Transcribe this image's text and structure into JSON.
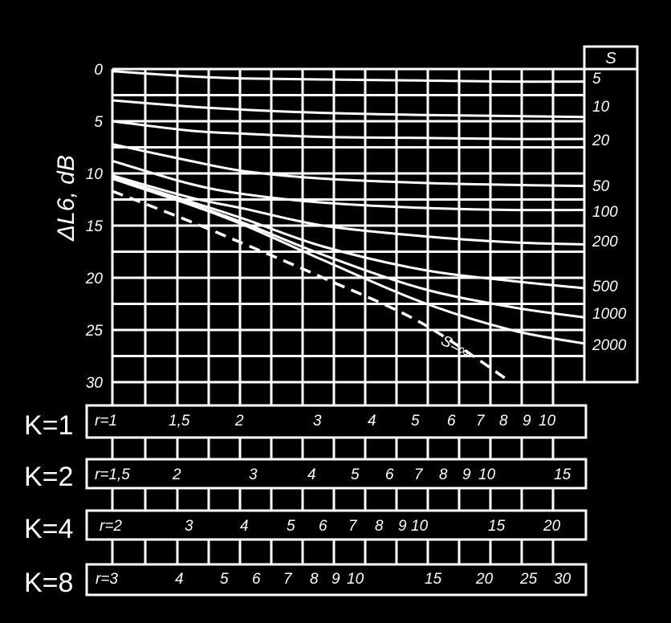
{
  "chart_data": {
    "type": "line",
    "ylabel": "ΔL6, dB",
    "y_axis": {
      "ticks": [
        "0",
        "5",
        "10",
        "15",
        "20",
        "25",
        "30"
      ],
      "ylim": [
        0,
        30
      ],
      "inverted": true
    },
    "grid": true,
    "legend": {
      "title": "S",
      "placement": "right",
      "entries": [
        "5",
        "10",
        "20",
        "50",
        "100",
        "200",
        "500",
        "1000",
        "2000"
      ]
    },
    "x_scale": "log",
    "x_reference": "K=1 r",
    "series": [
      {
        "s": "5",
        "style": "solid",
        "x": [
          1,
          1.5,
          2,
          3,
          5,
          8,
          12
        ],
        "y": [
          0.2,
          0.7,
          0.9,
          1.0,
          1.1,
          1.2,
          1.2
        ]
      },
      {
        "s": "10",
        "style": "solid",
        "x": [
          1,
          1.5,
          2,
          3,
          5,
          8,
          12
        ],
        "y": [
          3.0,
          3.6,
          3.9,
          4.2,
          4.4,
          4.5,
          4.6
        ]
      },
      {
        "s": "20",
        "style": "solid",
        "x": [
          1,
          1.5,
          2,
          3,
          5,
          8,
          12
        ],
        "y": [
          5.0,
          5.9,
          6.2,
          6.5,
          6.6,
          6.7,
          6.7
        ]
      },
      {
        "s": "50",
        "style": "solid",
        "x": [
          1,
          1.5,
          2,
          3,
          5,
          8,
          12
        ],
        "y": [
          7.2,
          8.8,
          9.8,
          10.5,
          10.9,
          11.1,
          11.2
        ]
      },
      {
        "s": "100",
        "style": "solid",
        "x": [
          1,
          1.5,
          2,
          3,
          5,
          8,
          12
        ],
        "y": [
          8.8,
          11.0,
          12.0,
          12.8,
          13.3,
          13.5,
          13.5
        ]
      },
      {
        "s": "200",
        "style": "solid",
        "x": [
          1,
          1.5,
          2,
          3,
          5,
          8,
          12
        ],
        "y": [
          10.2,
          12.3,
          13.4,
          15.0,
          16.0,
          16.6,
          16.8
        ]
      },
      {
        "s": "500",
        "style": "solid",
        "x": [
          1,
          1.5,
          2,
          3,
          5,
          8,
          12
        ],
        "y": [
          10.4,
          12.7,
          14.4,
          17.0,
          19.2,
          20.3,
          21.0
        ]
      },
      {
        "s": "1000",
        "style": "solid",
        "x": [
          1,
          1.5,
          2,
          3,
          5,
          8,
          12
        ],
        "y": [
          10.5,
          12.9,
          14.8,
          17.8,
          21.0,
          22.8,
          23.8
        ]
      },
      {
        "s": "2000",
        "style": "solid",
        "x": [
          1,
          1.5,
          2,
          3,
          5,
          8,
          12
        ],
        "y": [
          10.5,
          13.0,
          15.0,
          18.3,
          22.3,
          25.0,
          26.3
        ]
      },
      {
        "s": "S=∞",
        "style": "dashed",
        "x": [
          1,
          1.5,
          2,
          3,
          5,
          8
        ],
        "y": [
          11.7,
          14.6,
          16.8,
          20.0,
          24.3,
          30.0
        ]
      }
    ],
    "annotations": [
      "S=∞"
    ],
    "scales": [
      {
        "k": "K=1",
        "ticks": [
          {
            "label": "r=1",
            "value": 1
          },
          {
            "label": "1,5",
            "value": 1.5
          },
          {
            "label": "2",
            "value": 2
          },
          {
            "label": "3",
            "value": 3
          },
          {
            "label": "4",
            "value": 4
          },
          {
            "label": "5",
            "value": 5
          },
          {
            "label": "6",
            "value": 6
          },
          {
            "label": "7",
            "value": 7
          },
          {
            "label": "8",
            "value": 8
          },
          {
            "label": "9",
            "value": 9
          },
          {
            "label": "10",
            "value": 10
          }
        ]
      },
      {
        "k": "K=2",
        "ticks": [
          {
            "label": "r=1,5",
            "value": 1.5
          },
          {
            "label": "2",
            "value": 2
          },
          {
            "label": "3",
            "value": 3
          },
          {
            "label": "4",
            "value": 4
          },
          {
            "label": "5",
            "value": 5
          },
          {
            "label": "6",
            "value": 6
          },
          {
            "label": "7",
            "value": 7
          },
          {
            "label": "8",
            "value": 8
          },
          {
            "label": "9",
            "value": 9
          },
          {
            "label": "10",
            "value": 10
          },
          {
            "label": "15",
            "value": 15
          }
        ]
      },
      {
        "k": "K=4",
        "ticks": [
          {
            "label": "r=2",
            "value": 2
          },
          {
            "label": "3",
            "value": 3
          },
          {
            "label": "4",
            "value": 4
          },
          {
            "label": "5",
            "value": 5
          },
          {
            "label": "6",
            "value": 6
          },
          {
            "label": "7",
            "value": 7
          },
          {
            "label": "8",
            "value": 8
          },
          {
            "label": "9",
            "value": 9
          },
          {
            "label": "10",
            "value": 10
          },
          {
            "label": "15",
            "value": 15
          },
          {
            "label": "20",
            "value": 20
          }
        ]
      },
      {
        "k": "K=8",
        "ticks": [
          {
            "label": "r=3",
            "value": 3
          },
          {
            "label": "4",
            "value": 4
          },
          {
            "label": "5",
            "value": 5
          },
          {
            "label": "6",
            "value": 6
          },
          {
            "label": "7",
            "value": 7
          },
          {
            "label": "8",
            "value": 8
          },
          {
            "label": "9",
            "value": 9
          },
          {
            "label": "10",
            "value": 10
          },
          {
            "label": "15",
            "value": 15
          },
          {
            "label": "20",
            "value": 20
          },
          {
            "label": "25",
            "value": 25
          },
          {
            "label": "30",
            "value": 30
          }
        ]
      }
    ],
    "colors": {
      "background": "#000000",
      "foreground": "#ffffff"
    }
  }
}
